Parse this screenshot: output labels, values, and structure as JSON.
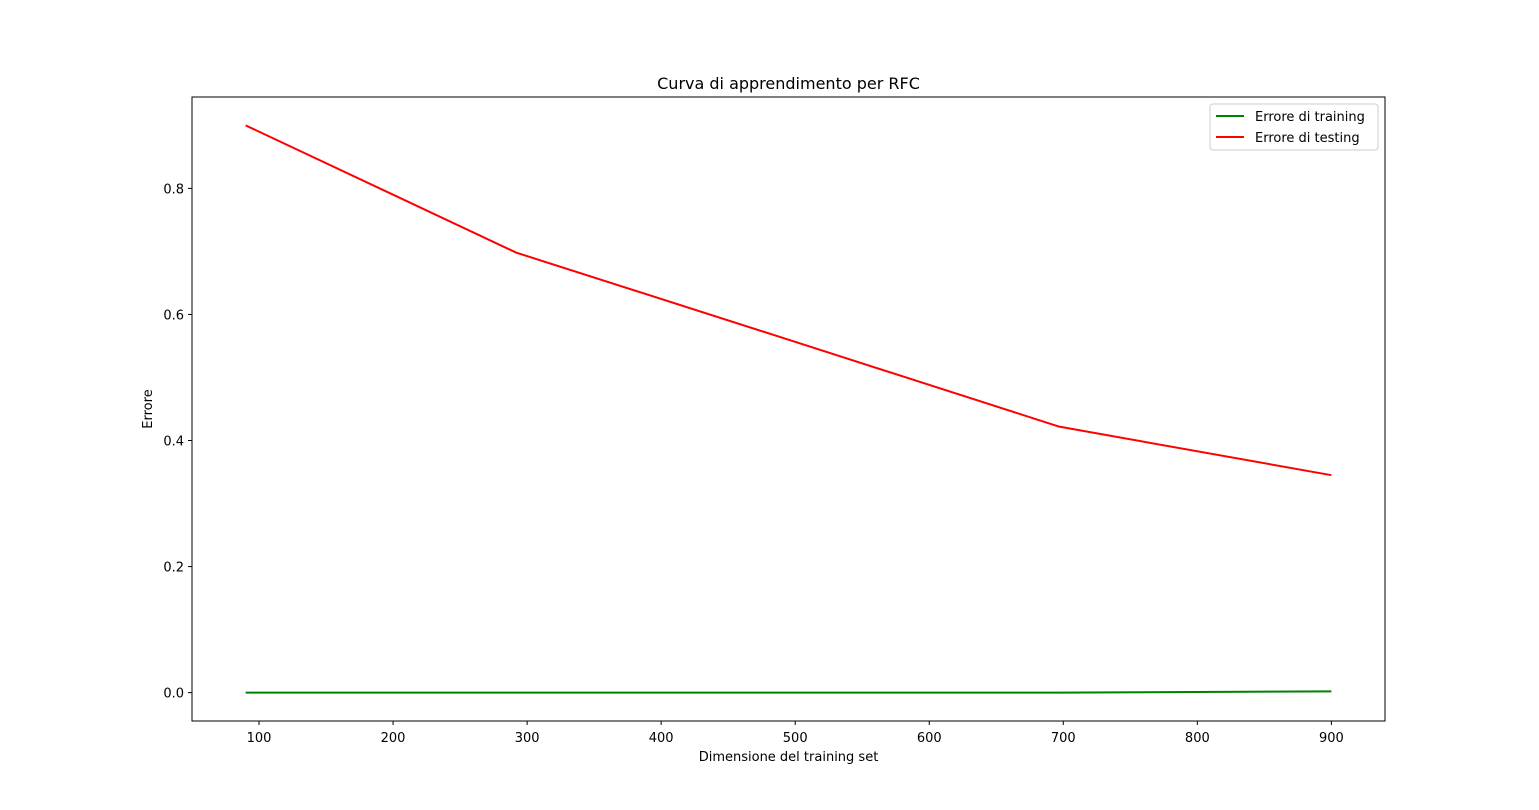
{
  "chart_data": {
    "type": "line",
    "title": "Curva di apprendimento per RFC",
    "xlabel": "Dimensione del training set",
    "ylabel": "Errore",
    "xlim": [
      50,
      940
    ],
    "ylim": [
      -0.045,
      0.945
    ],
    "x_ticks": [
      100,
      200,
      300,
      400,
      500,
      600,
      700,
      800,
      900
    ],
    "y_ticks": [
      0.0,
      0.2,
      0.4,
      0.6,
      0.8
    ],
    "y_tick_labels": [
      "0.0",
      "0.2",
      "0.4",
      "0.6",
      "0.8"
    ],
    "grid": false,
    "legend_position": "top-right",
    "x": [
      90,
      292,
      495,
      697,
      900
    ],
    "series": [
      {
        "name": "Errore di training",
        "color": "#008000",
        "values": [
          0.0,
          0.0,
          0.0,
          0.0,
          0.002
        ]
      },
      {
        "name": "Errore di testing",
        "color": "#ff0000",
        "values": [
          0.9,
          0.698,
          0.56,
          0.422,
          0.345
        ]
      }
    ]
  }
}
